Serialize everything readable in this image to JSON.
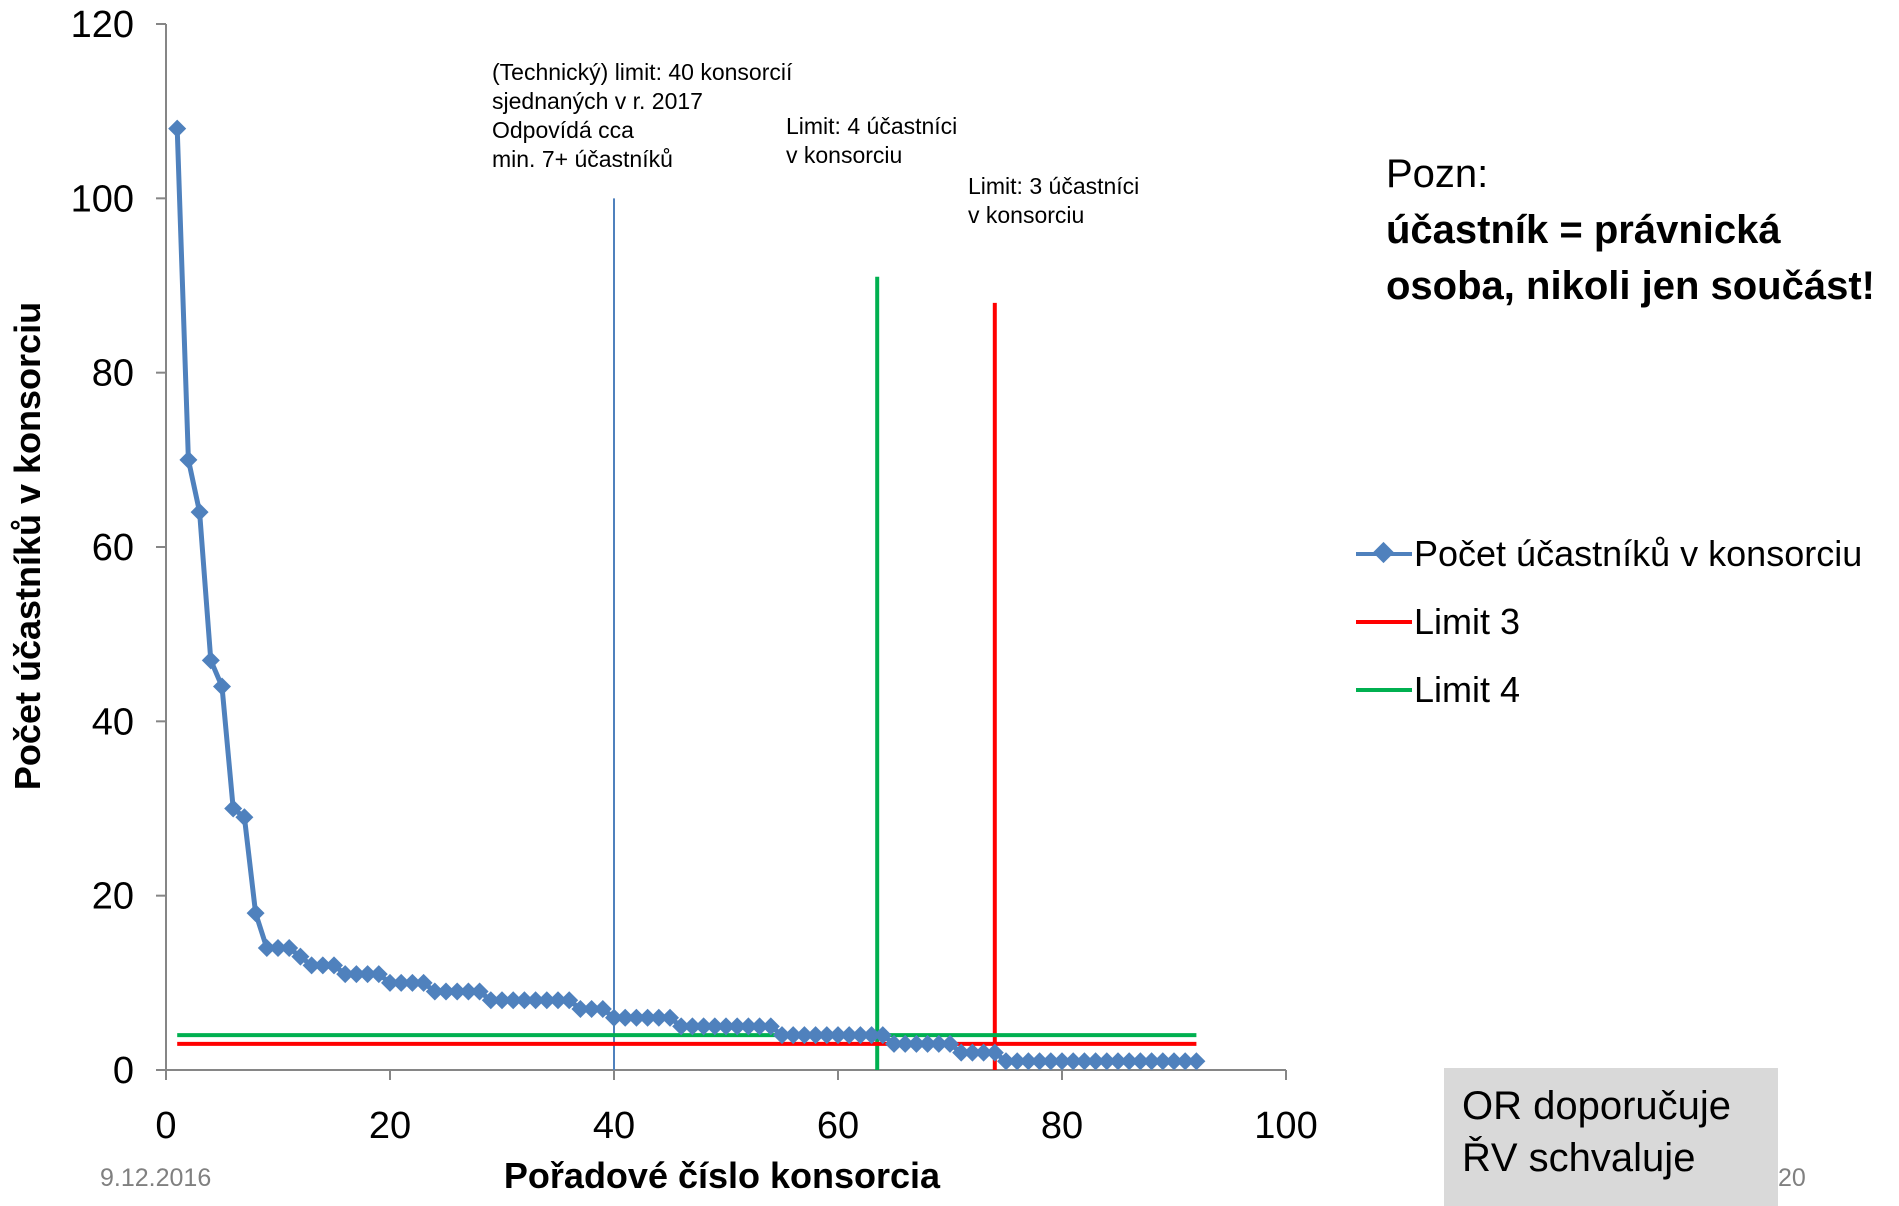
{
  "chart_data": {
    "type": "line",
    "xlabel": "Pořadové číslo konsorcia",
    "ylabel": "Počet účastníků v konsorciu",
    "xlim": [
      0,
      100
    ],
    "ylim": [
      0,
      120
    ],
    "xticks": [
      0,
      20,
      40,
      60,
      80,
      100
    ],
    "yticks": [
      0,
      20,
      40,
      60,
      80,
      100,
      120
    ],
    "grid": false,
    "legend_position": "right",
    "series": [
      {
        "name": "Počet účastníků v konsorciu",
        "color": "#4F81BD",
        "marker": "diamond",
        "x": [
          1,
          2,
          3,
          4,
          5,
          6,
          7,
          8,
          9,
          10,
          11,
          12,
          13,
          14,
          15,
          16,
          17,
          18,
          19,
          20,
          21,
          22,
          23,
          24,
          25,
          26,
          27,
          28,
          29,
          30,
          31,
          32,
          33,
          34,
          35,
          36,
          37,
          38,
          39,
          40,
          41,
          42,
          43,
          44,
          45,
          46,
          47,
          48,
          49,
          50,
          51,
          52,
          53,
          54,
          55,
          56,
          57,
          58,
          59,
          60,
          61,
          62,
          63,
          64,
          65,
          66,
          67,
          68,
          69,
          70,
          71,
          72,
          73,
          74,
          75,
          76,
          77,
          78,
          79,
          80,
          81,
          82,
          83,
          84,
          85,
          86,
          87,
          88,
          89,
          90,
          91,
          92
        ],
        "y": [
          108,
          70,
          64,
          47,
          44,
          30,
          29,
          18,
          14,
          14,
          14,
          13,
          12,
          12,
          12,
          11,
          11,
          11,
          11,
          10,
          10,
          10,
          10,
          9,
          9,
          9,
          9,
          9,
          8,
          8,
          8,
          8,
          8,
          8,
          8,
          8,
          7,
          7,
          7,
          6,
          6,
          6,
          6,
          6,
          6,
          5,
          5,
          5,
          5,
          5,
          5,
          5,
          5,
          5,
          4,
          4,
          4,
          4,
          4,
          4,
          4,
          4,
          4,
          4,
          3,
          3,
          3,
          3,
          3,
          3,
          2,
          2,
          2,
          2,
          1,
          1,
          1,
          1,
          1,
          1,
          1,
          1,
          1,
          1,
          1,
          1,
          1,
          1,
          1,
          1,
          1,
          1
        ]
      },
      {
        "name": "Limit 3",
        "color": "#FF0000",
        "x": [
          1,
          92
        ],
        "y": [
          3,
          3
        ]
      },
      {
        "name": "Limit 4",
        "color": "#00B050",
        "x": [
          1,
          92
        ],
        "y": [
          4,
          4
        ]
      }
    ],
    "reference_lines": [
      {
        "x": 40,
        "y_top": 100,
        "color": "#4F81BD"
      },
      {
        "x": 63.5,
        "y_top": 91,
        "color": "#00B050"
      },
      {
        "x": 74,
        "y_top": 88,
        "color": "#FF0000"
      }
    ],
    "annotations": [
      "(Technický) limit: 40 konsorcií\nsjednaných v r. 2017\nOdpovídá cca\nmin. 7+ účastníků",
      "Limit:  4 účastníci\nv konsorciu",
      "Limit:  3 účastníci\nv konsorciu"
    ]
  },
  "note": {
    "head": "Pozn:",
    "body": "účastník = právnická\nosoba, nikoli jen součást!"
  },
  "box_text": "OR doporučuje\nŘV schvaluje",
  "footer": {
    "date": "9.12.2016",
    "page": "20"
  }
}
